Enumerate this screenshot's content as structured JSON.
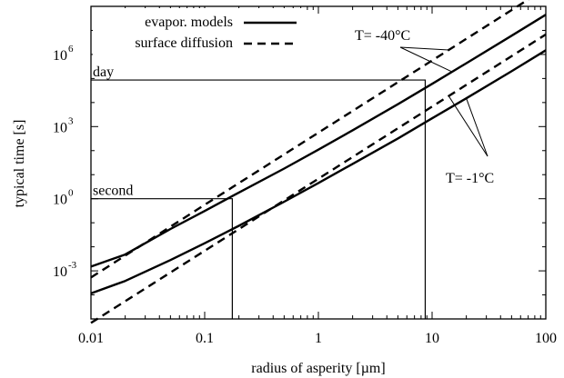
{
  "chart_data": {
    "type": "line",
    "xlabel": "radius of asperity [µm]",
    "ylabel": "typical time [s]",
    "x_scale": "log",
    "y_scale": "log",
    "xlim": [
      0.01,
      100
    ],
    "ylim": [
      1e-05,
      100000000.0
    ],
    "x_ticks": [
      {
        "value": 0.01,
        "label": "0.01"
      },
      {
        "value": 0.1,
        "label": "0.1"
      },
      {
        "value": 1,
        "label": "1"
      },
      {
        "value": 10,
        "label": "10"
      },
      {
        "value": 100,
        "label": "100"
      }
    ],
    "y_ticks": [
      {
        "value": 0.001,
        "base": "10",
        "exp": "-3"
      },
      {
        "value": 1,
        "base": "10",
        "exp": "0"
      },
      {
        "value": 1000,
        "base": "10",
        "exp": "3"
      },
      {
        "value": 1000000,
        "base": "10",
        "exp": "6"
      }
    ],
    "grid": false,
    "legend": {
      "placement": "top-left",
      "items": [
        {
          "label": "evapor. models",
          "style": "solid"
        },
        {
          "label": "surface diffusion",
          "style": "dashed"
        }
      ]
    },
    "series": [
      {
        "group": "T= -40°C",
        "style": "solid",
        "points": [
          [
            0.01,
            0.0015
          ],
          [
            0.02,
            0.0048
          ],
          [
            0.05,
            0.055
          ],
          [
            0.1,
            0.31
          ],
          [
            0.2,
            1.8
          ],
          [
            0.5,
            18
          ],
          [
            1,
            110
          ],
          [
            2,
            700
          ],
          [
            5,
            8500
          ],
          [
            10,
            60000
          ],
          [
            20,
            430000
          ],
          [
            50,
            6000000
          ],
          [
            100,
            45000000
          ]
        ]
      },
      {
        "group": "T= -40°C",
        "style": "dashed",
        "points": [
          [
            0.01,
            0.00053
          ],
          [
            0.1,
            0.56
          ],
          [
            1,
            560
          ],
          [
            10,
            560000
          ],
          [
            100,
            560000000
          ]
        ]
      },
      {
        "group": "T= -1°C",
        "style": "solid",
        "points": [
          [
            0.01,
            0.000115
          ],
          [
            0.02,
            0.00038
          ],
          [
            0.05,
            0.0028
          ],
          [
            0.1,
            0.014
          ],
          [
            0.2,
            0.075
          ],
          [
            0.5,
            0.75
          ],
          [
            1,
            4.5
          ],
          [
            2,
            28
          ],
          [
            5,
            320
          ],
          [
            10,
            2200
          ],
          [
            20,
            15000
          ],
          [
            50,
            200000
          ],
          [
            100,
            1500000
          ]
        ]
      },
      {
        "group": "T= -1°C",
        "style": "dashed",
        "points": [
          [
            0.01,
            6.8e-06
          ],
          [
            0.1,
            0.0068
          ],
          [
            1,
            6.8
          ],
          [
            10,
            6800
          ],
          [
            100,
            6800000
          ]
        ]
      }
    ],
    "reference_lines": [
      {
        "label": "day",
        "y": 86400,
        "x_cross": 8.7
      },
      {
        "label": "second",
        "y": 1,
        "x_cross": 0.175
      }
    ],
    "annotations": [
      {
        "text": "T= -40°C",
        "points_to": "T= -40°C"
      },
      {
        "text": "T= -1°C",
        "points_to": "T= -1°C"
      }
    ]
  }
}
